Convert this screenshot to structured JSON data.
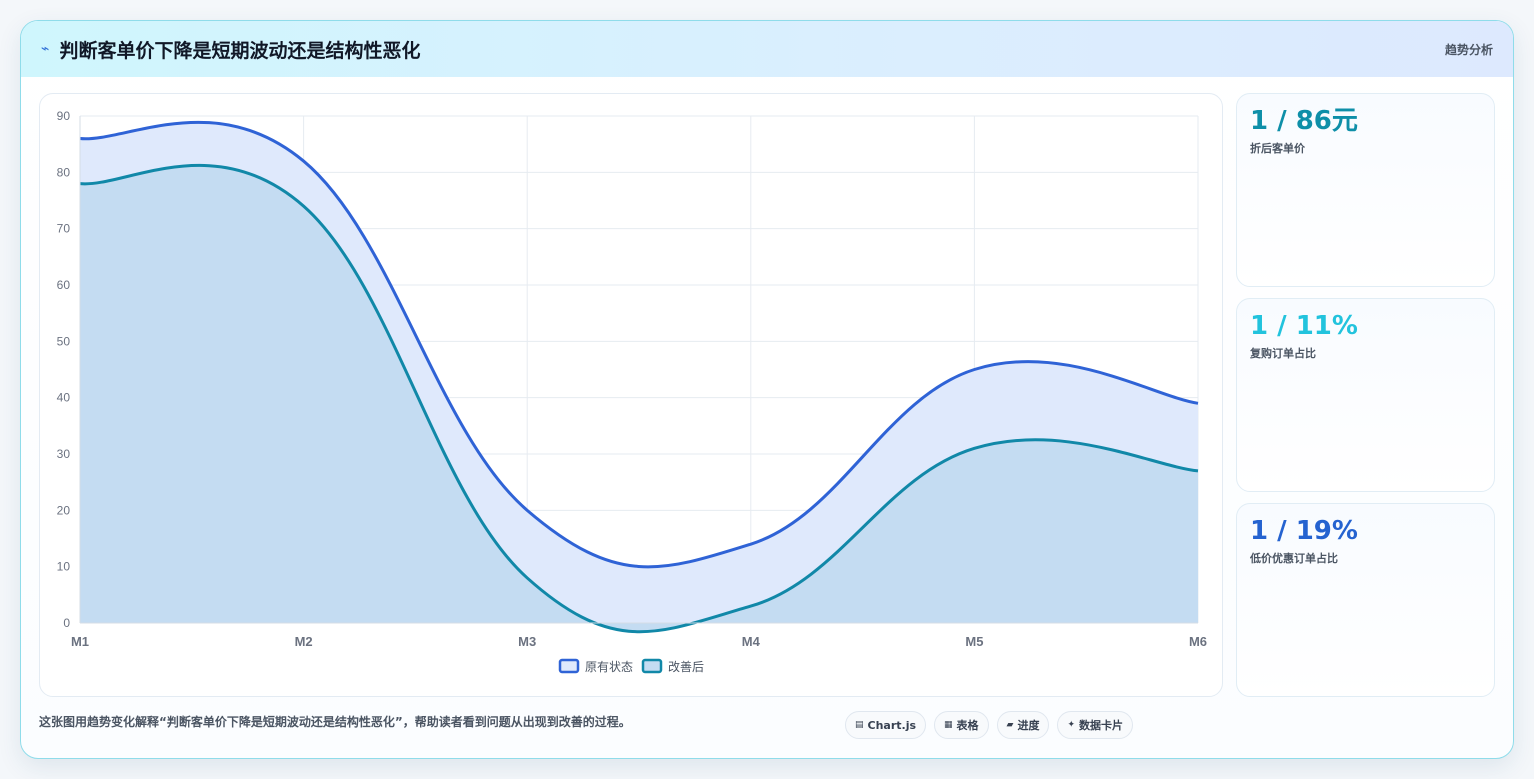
{
  "header": {
    "icon": "lightning-icon",
    "title": "判断客单价下降是短期波动还是结构性恶化",
    "tag": "趋势分析"
  },
  "kpis": [
    {
      "value": "1 / 86元",
      "label": "折后客单价",
      "color": "#0e8fa8"
    },
    {
      "value": "1 / 11%",
      "label": "复购订单占比",
      "color": "#22c3dd"
    },
    {
      "value": "1 / 19%",
      "label": "低价优惠订单占比",
      "color": "#2563d0"
    }
  ],
  "footer": {
    "description": "这张图用趋势变化解释“判断客单价下降是短期波动还是结构性恶化”，帮助读者看到问题从出现到改善的过程。",
    "chips": [
      {
        "icon": "chart-icon",
        "label": "Chart.js"
      },
      {
        "icon": "table-icon",
        "label": "表格"
      },
      {
        "icon": "progress-icon",
        "label": "进度"
      },
      {
        "icon": "card-icon",
        "label": "数据卡片"
      }
    ]
  },
  "chart_data": {
    "type": "area",
    "categories": [
      "M1",
      "M2",
      "M3",
      "M4",
      "M5",
      "M6"
    ],
    "series": [
      {
        "name": "原有状态",
        "values": [
          86,
          82,
          20,
          14,
          45,
          39
        ],
        "color": "#2f63d6",
        "fill": "#dfe9fc"
      },
      {
        "name": "改善后",
        "values": [
          78,
          74,
          8,
          3,
          31,
          27
        ],
        "color": "#1188a8",
        "fill": "#c4dcf2"
      }
    ],
    "ylim": [
      0,
      90
    ],
    "yticks": [
      0,
      10,
      20,
      30,
      40,
      50,
      60,
      70,
      80,
      90
    ],
    "grid": true,
    "legend": "bottom",
    "xlabel": "",
    "ylabel": "",
    "title": ""
  }
}
